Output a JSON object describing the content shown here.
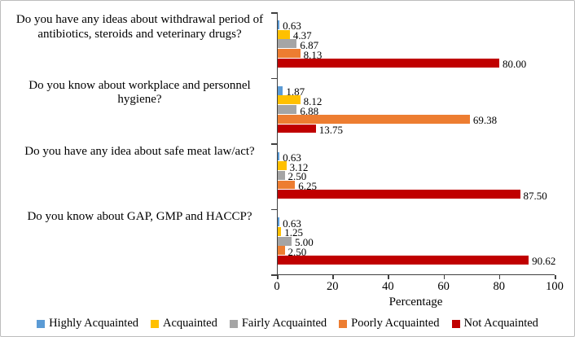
{
  "chart_data": {
    "type": "bar",
    "orientation": "horizontal",
    "categories": [
      "Do you have any ideas about withdrawal period of antibiotics, steroids and veterinary drugs?",
      "Do you know about workplace and personnel hygiene?",
      "Do you have any idea about safe meat law/act?",
      "Do you know about GAP, GMP and HACCP?"
    ],
    "series": [
      {
        "name": "Highly Acquainted",
        "color": "#5B9BD5",
        "values": [
          0.63,
          1.87,
          0.63,
          0.63
        ],
        "labels": [
          "0.63",
          "1.87",
          "0.63",
          "0.63"
        ]
      },
      {
        "name": "Acquainted",
        "color": "#FFC000",
        "values": [
          4.37,
          8.12,
          3.12,
          1.25
        ],
        "labels": [
          "4.37",
          "8.12",
          "3.12",
          "1.25"
        ]
      },
      {
        "name": "Fairly Acquainted",
        "color": "#A5A5A5",
        "values": [
          6.87,
          6.88,
          2.5,
          5.0
        ],
        "labels": [
          "6.87",
          "6.88",
          "2.50",
          "5.00"
        ]
      },
      {
        "name": "Poorly Acquainted",
        "color": "#ED7D31",
        "values": [
          8.13,
          69.38,
          6.25,
          2.5
        ],
        "labels": [
          "8.13",
          "69.38",
          "6.25",
          "2.50"
        ]
      },
      {
        "name": "Not Acquainted",
        "color": "#C00000",
        "values": [
          80.0,
          13.75,
          87.5,
          90.62
        ],
        "labels": [
          "80.00",
          "13.75",
          "87.50",
          "90.62"
        ]
      }
    ],
    "xlabel": "Percentage",
    "xlim": [
      0,
      100
    ],
    "xticks": [
      "0",
      "20",
      "40",
      "60",
      "80",
      "100"
    ],
    "grid": false,
    "legend_position": "bottom",
    "axis_color": "#3f3f3f",
    "background_color": "#ffffff"
  }
}
